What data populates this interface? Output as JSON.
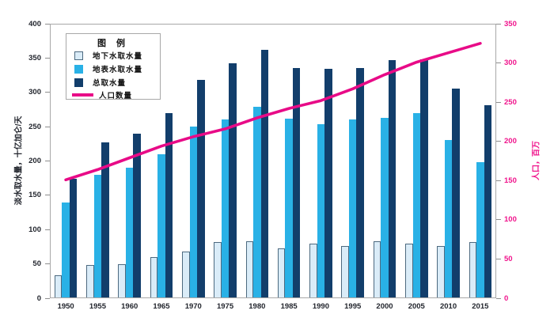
{
  "chart": {
    "legend": {
      "title": "图 例"
    },
    "colors": {
      "groundwater_fill": "#daecf8",
      "groundwater_border": "#4d6a80",
      "surface_water": "#29b1e6",
      "total": "#123e6b",
      "population_line": "#e80a87",
      "right_axis_text": "#f0148c",
      "left_axis_text": "#23262e",
      "plot_border": "#a8a8a8"
    }
  },
  "chart_data": {
    "type": "bar",
    "categories": [
      "1950",
      "1955",
      "1960",
      "1965",
      "1970",
      "1975",
      "1980",
      "1985",
      "1990",
      "1995",
      "2000",
      "2005",
      "2010",
      "2015"
    ],
    "series": [
      {
        "key": "groundwater",
        "name": "地下水取水量",
        "type": "bar",
        "axis": "left",
        "values": [
          34,
          48,
          50,
          60,
          68,
          82,
          83,
          73,
          79,
          76,
          83,
          79,
          76,
          82
        ]
      },
      {
        "key": "surface-water",
        "name": "地表水取水量",
        "type": "bar",
        "axis": "left",
        "values": [
          140,
          180,
          190,
          210,
          250,
          260,
          279,
          262,
          254,
          260,
          263,
          270,
          230,
          198
        ]
      },
      {
        "key": "total",
        "name": "总取水量",
        "type": "bar",
        "axis": "left",
        "values": [
          174,
          227,
          240,
          270,
          318,
          342,
          362,
          336,
          334,
          336,
          347,
          348,
          306,
          281
        ]
      },
      {
        "key": "population",
        "name": "人口数量",
        "type": "line",
        "axis": "right",
        "values": [
          151,
          164,
          179,
          194,
          206,
          216,
          230,
          242,
          252,
          267,
          285,
          301,
          313,
          325
        ]
      }
    ],
    "left_axis": {
      "label": "淡水取水量，十亿加仑/天",
      "min": 0,
      "max": 400,
      "step": 50
    },
    "right_axis": {
      "label": "人口，百万",
      "min": 0,
      "max": 350,
      "step": 50
    },
    "grid": false,
    "legend_position": "upper-left-inside"
  }
}
